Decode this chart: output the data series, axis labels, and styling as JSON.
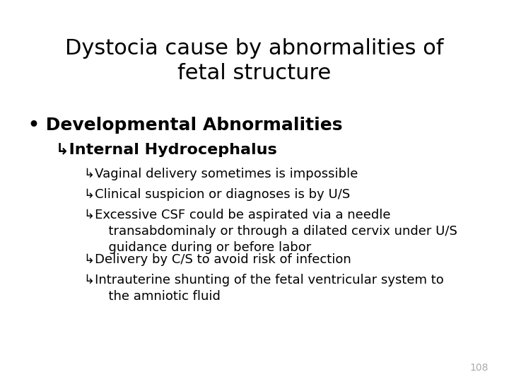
{
  "title_line1": "Dystocia cause by abnormalities of",
  "title_line2": "fetal structure",
  "title_fontsize": 22,
  "title_color": "#000000",
  "background_color": "#ffffff",
  "bullet1": "Developmental Abnormalities",
  "bullet1_fontsize": 18,
  "sub1": "Internal Hydrocephalus",
  "sub1_fontsize": 16,
  "sub_items": [
    "Vaginal delivery sometimes is impossible",
    "Clinical suspicion or diagnoses is by U/S",
    "Excessive CSF could be aspirated via a needle\n      transabdominaly or through a dilated cervix under U/S\n      guidance during or before labor",
    "Delivery by C/S to avoid risk of infection",
    "Intrauterine shunting of the fetal ventricular system to\n      the amniotic fluid"
  ],
  "sub_items_fontsize": 13,
  "page_number": "108",
  "page_number_color": "#aaaaaa",
  "page_number_fontsize": 10
}
